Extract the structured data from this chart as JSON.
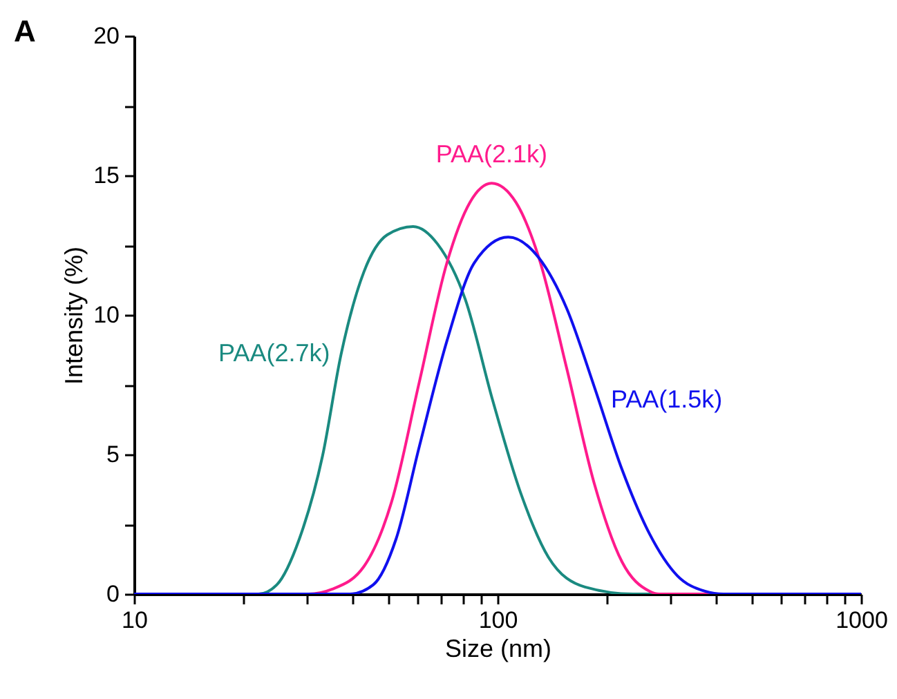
{
  "chart_data": {
    "type": "line",
    "xlabel": "Size (nm)",
    "ylabel": "Intensity (%)",
    "annotations": [
      "A"
    ],
    "log": "x",
    "xlim": [
      10,
      1000
    ],
    "xticks": [
      10,
      {
        "value": 20,
        "label": null
      },
      {
        "value": 30,
        "label": null
      },
      {
        "value": 40,
        "label": null
      },
      {
        "value": 50,
        "label": null
      },
      {
        "value": 60,
        "label": null
      },
      {
        "value": 70,
        "label": null
      },
      {
        "value": 80,
        "label": null
      },
      {
        "value": 90,
        "label": null
      },
      100,
      {
        "value": 200,
        "label": null
      },
      {
        "value": 300,
        "label": null
      },
      {
        "value": 400,
        "label": null
      },
      {
        "value": 500,
        "label": null
      },
      {
        "value": 600,
        "label": null
      },
      {
        "value": 700,
        "label": null
      },
      {
        "value": 800,
        "label": null
      },
      {
        "value": 900,
        "label": null
      },
      1000
    ],
    "ylim": [
      0,
      20
    ],
    "yticks": [
      0,
      {
        "value": 2.5,
        "label": null
      },
      5,
      {
        "value": 7.5,
        "label": null
      },
      10,
      {
        "value": 12.5,
        "label": null
      },
      15,
      {
        "value": 17.5,
        "label": null
      },
      20
    ],
    "series": [
      {
        "name": "PAA(2.7k)",
        "color": "#1a8a80",
        "x": [
          10,
          22,
          24.7,
          28.5,
          33.0,
          37.1,
          42.9,
          49.7,
          58.6,
          68.4,
          81.5,
          97,
          115.7,
          138,
          174,
          236,
          1000
        ],
        "values": [
          0,
          0,
          0.33,
          1.98,
          4.95,
          8.58,
          11.55,
          12.87,
          13.17,
          12.54,
          10.56,
          6.93,
          3.63,
          1.32,
          0.25,
          0,
          0
        ]
      },
      {
        "name": "PAA(2.1k)",
        "color": "#ff1a8c",
        "x": [
          10,
          30.2,
          35,
          42.9,
          51.1,
          60.9,
          72.6,
          83.9,
          96.3,
          112.4,
          130,
          155,
          184.5,
          220,
          262,
          278,
          1000
        ],
        "values": [
          0,
          0,
          0.17,
          0.99,
          3.3,
          7.59,
          11.88,
          14.03,
          14.72,
          14.03,
          12.04,
          8.08,
          3.96,
          1.15,
          0.1,
          0,
          0
        ]
      },
      {
        "name": "PAA(1.5k)",
        "color": "#1010ee",
        "x": [
          10,
          39.3,
          45.5,
          52.6,
          60.9,
          72.6,
          86.4,
          107,
          130,
          155,
          184.5,
          220,
          262,
          312,
          372,
          418,
          1000
        ],
        "values": [
          0,
          0,
          0.33,
          1.98,
          5.28,
          9.08,
          11.88,
          12.79,
          12.04,
          10.23,
          7.43,
          4.46,
          2.15,
          0.66,
          0.1,
          0,
          0
        ]
      }
    ]
  }
}
